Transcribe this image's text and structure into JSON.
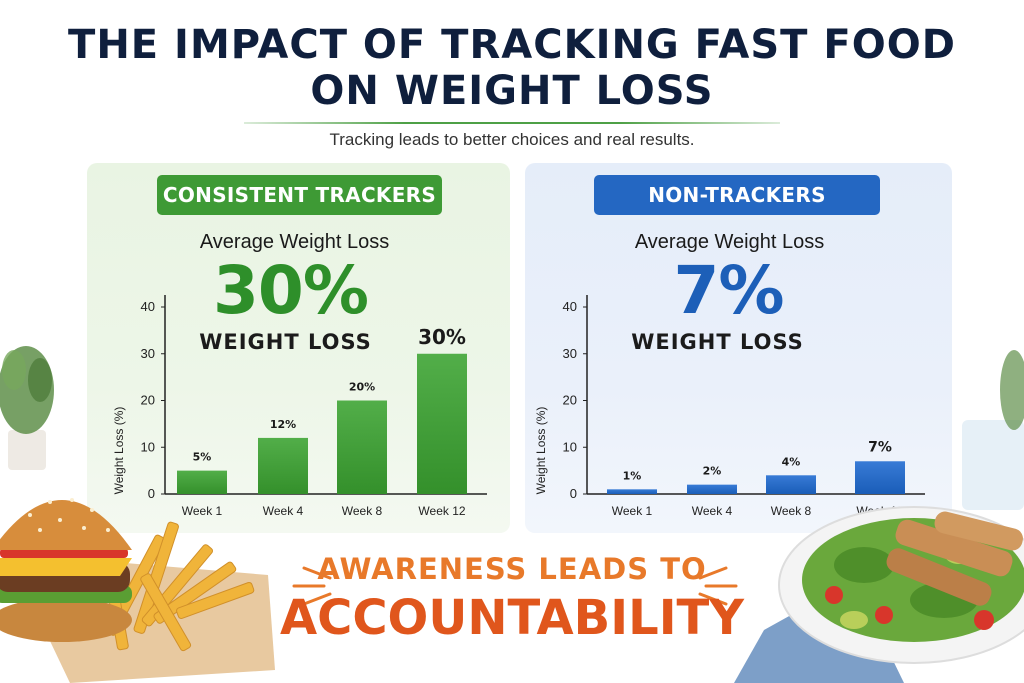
{
  "header": {
    "title_line1": "THE IMPACT OF TRACKING FAST FOOD",
    "title_line2": "ON WEIGHT LOSS",
    "subtitle": "Tracking leads to better choices and real results."
  },
  "panels": {
    "trackers": {
      "heading": "CONSISTENT TRACKERS",
      "avg_label": "Average Weight Loss",
      "big_value": "30%",
      "loss_word": "WEIGHT LOSS",
      "color": "#3e9a35"
    },
    "non_trackers": {
      "heading": "NON-TRACKERS",
      "avg_label": "Average Weight Loss",
      "big_value": "7%",
      "loss_word": "WEIGHT LOSS",
      "color": "#2467c2"
    }
  },
  "footer": {
    "tagline_line1": "AWARENESS LEADS TO",
    "tagline_line2": "ACCOUNTABILITY"
  },
  "chart_data": [
    {
      "type": "bar",
      "title": "CONSISTENT TRACKERS",
      "categories": [
        "Week 1",
        "Week 4",
        "Week 8",
        "Week 12"
      ],
      "values": [
        5,
        12,
        20,
        30
      ],
      "data_labels": [
        "5%",
        "12%",
        "20%",
        "30%"
      ],
      "ylabel": "Weight Loss (%)",
      "xlabel": "",
      "ylim": [
        0,
        40
      ],
      "yticks": [
        0,
        10,
        20,
        30,
        40
      ],
      "grid": false,
      "color": "#3e9a35"
    },
    {
      "type": "bar",
      "title": "NON-TRACKERS",
      "categories": [
        "Week 1",
        "Week 4",
        "Week 8",
        "Week 12"
      ],
      "values": [
        1,
        2,
        4,
        7
      ],
      "data_labels": [
        "1%",
        "2%",
        "4%",
        "7%"
      ],
      "ylabel": "Weight Loss (%)",
      "xlabel": "",
      "ylim": [
        0,
        40
      ],
      "yticks": [
        0,
        10,
        20,
        30,
        40
      ],
      "grid": false,
      "color": "#2467c2"
    }
  ]
}
